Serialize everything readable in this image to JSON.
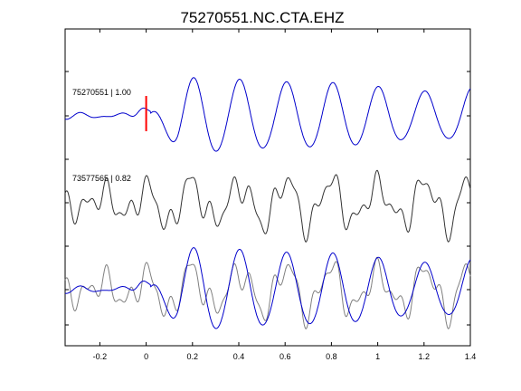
{
  "title": "75270551.NC.CTA.EHZ",
  "chart_data": {
    "type": "line",
    "title": "75270551.NC.CTA.EHZ",
    "xlabel": "",
    "ylabel": "",
    "xlim": [
      -0.35,
      1.4
    ],
    "xticks": [
      -0.2,
      0,
      0.2,
      0.4,
      0.6,
      0.8,
      1,
      1.2,
      1.4
    ],
    "xtick_labels": [
      "-0.2",
      "0",
      "0.2",
      "0.4",
      "0.6",
      "0.8",
      "1",
      "1.2",
      "1.4"
    ],
    "grid": false,
    "pick_marker": {
      "x": 0,
      "color": "#ff0000"
    },
    "traces": [
      {
        "label": "75270551 | 1.00",
        "color": "#0000cc"
      },
      {
        "label": "73577565 | 0.82",
        "color": "#333333"
      },
      {
        "label": "",
        "color": "#0000cc",
        "overlay_color": "#808080"
      }
    ]
  }
}
